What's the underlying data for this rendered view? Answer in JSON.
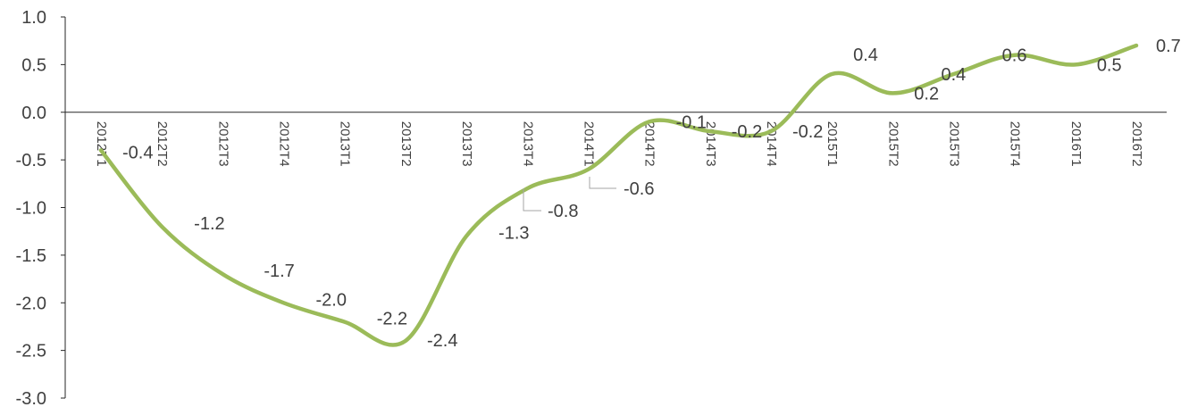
{
  "chart_data": {
    "type": "line",
    "title": "",
    "xlabel": "",
    "ylabel": "",
    "categories": [
      "2012T1",
      "2012T2",
      "2012T3",
      "2012T4",
      "2013T1",
      "2013T2",
      "2013T3",
      "2013T4",
      "2014T1",
      "2014T2",
      "2014T3",
      "2014T4",
      "2015T1",
      "2015T2",
      "2015T3",
      "2015T4",
      "2016T1",
      "2016T2"
    ],
    "series": [
      {
        "values": [
          -0.4,
          -1.2,
          -1.7,
          -2.0,
          -2.2,
          -2.4,
          -1.3,
          -0.8,
          -0.6,
          -0.1,
          -0.2,
          -0.2,
          0.4,
          0.2,
          0.4,
          0.6,
          0.5,
          0.7
        ],
        "labels": [
          "-0.4",
          "-1.2",
          "-1.7",
          "-2.0",
          "-2.2",
          "-2.4",
          "-1.3",
          "-0.8",
          "-0.6",
          "-0.1",
          "-0.2",
          "-0.2",
          "0.4",
          "0.2",
          "0.4",
          "0.6",
          "0.5",
          "0.7"
        ]
      }
    ],
    "y_ticks": [
      "1.0",
      "0.5",
      "0.0",
      "-0.5",
      "-1.0",
      "-1.5",
      "-2.0",
      "-2.5",
      "-3.0"
    ],
    "ylim": [
      -3.0,
      1.0
    ],
    "legend": "none",
    "grid": false,
    "smooth": true,
    "colors": {
      "line": "#9BBB59",
      "axis": "#262626",
      "text": "#404040",
      "leader": "#A6A6A6"
    }
  }
}
